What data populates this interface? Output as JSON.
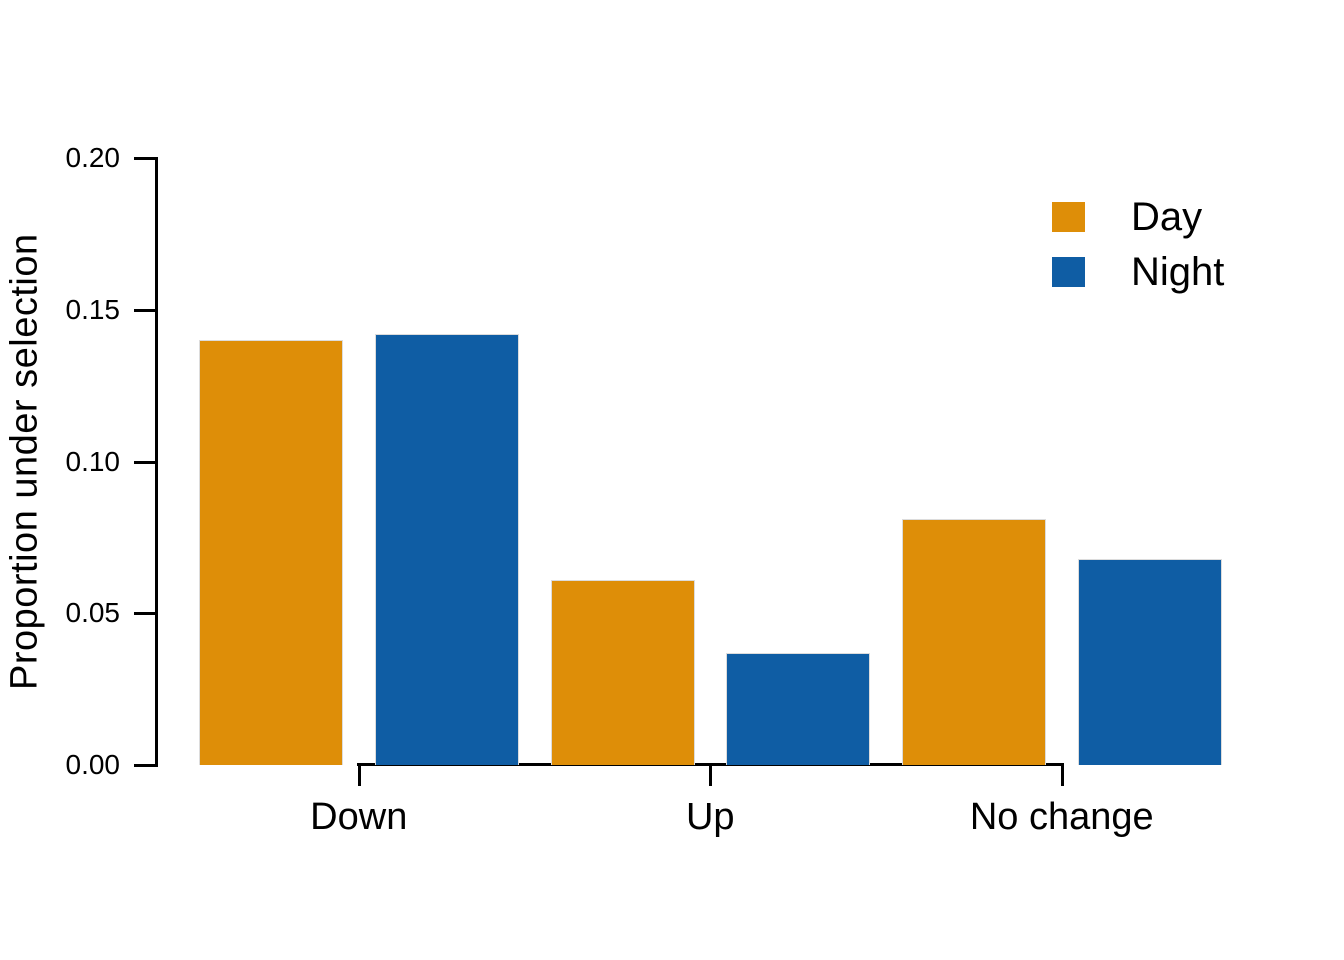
{
  "figure": {
    "background": "#ffffff",
    "text_color": "#000000"
  },
  "chart_data": {
    "type": "bar",
    "title": "",
    "xlabel": "",
    "ylabel": "Proportion under selection",
    "categories": [
      "Down",
      "Up",
      "No change"
    ],
    "series": [
      {
        "name": "Day",
        "color": "#DE8E08",
        "values": [
          0.14,
          0.061,
          0.081
        ]
      },
      {
        "name": "Night",
        "color": "#0F5DA4",
        "values": [
          0.142,
          0.037,
          0.068
        ]
      }
    ],
    "ylim": [
      0,
      0.2
    ],
    "yticks": [
      {
        "value": 0.0,
        "label": "0.00"
      },
      {
        "value": 0.05,
        "label": "0.05"
      },
      {
        "value": 0.1,
        "label": "0.10"
      },
      {
        "value": 0.15,
        "label": "0.15"
      },
      {
        "value": 0.2,
        "label": "0.20"
      }
    ],
    "grid": false,
    "legend": {
      "position": "top-right"
    }
  }
}
